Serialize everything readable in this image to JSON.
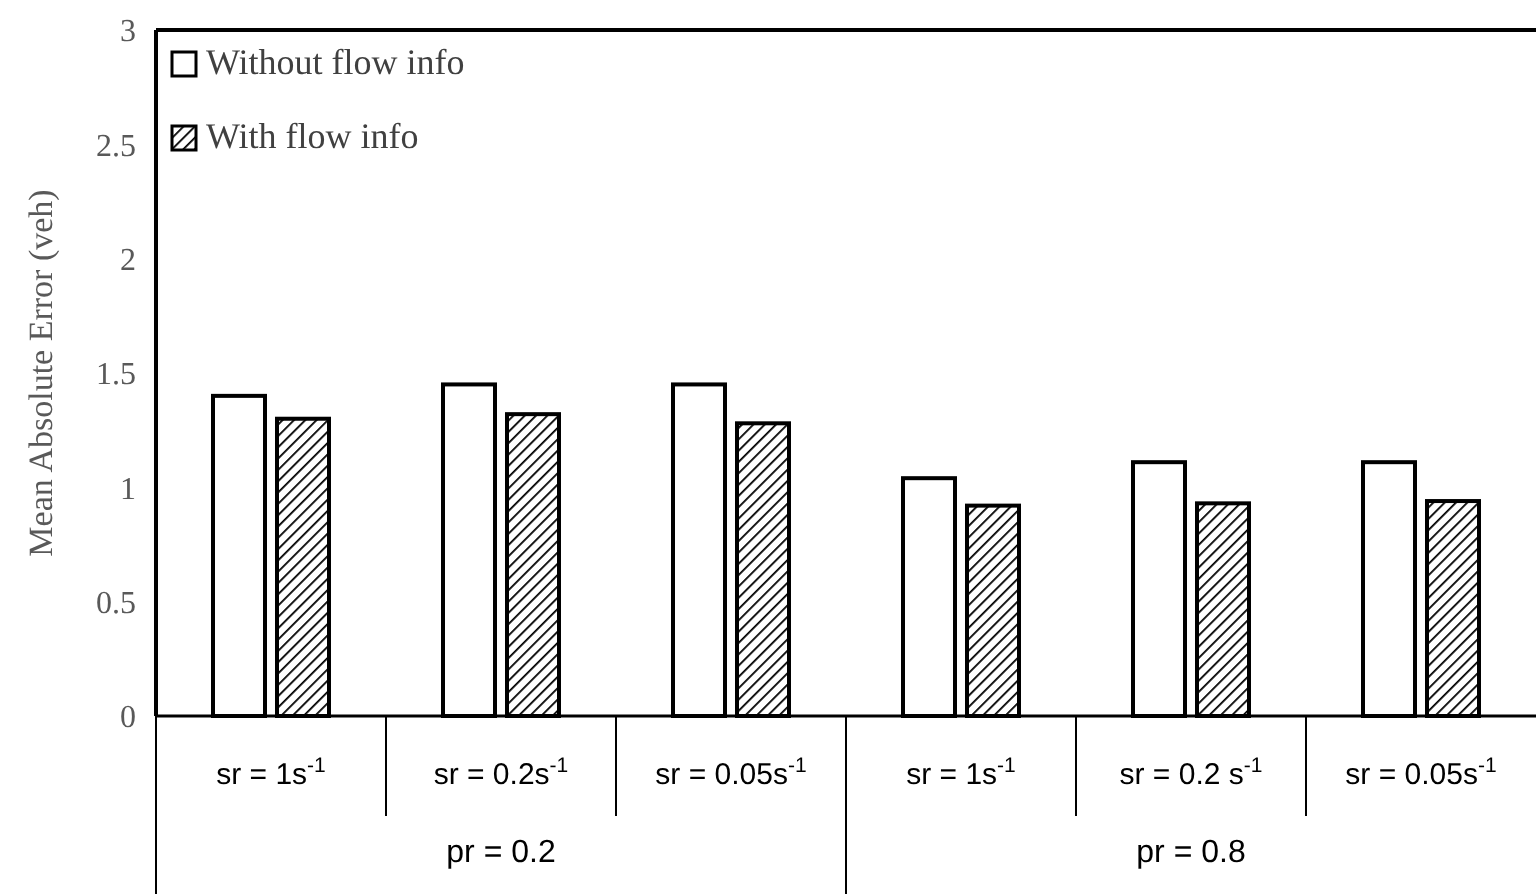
{
  "chart_data": {
    "type": "bar",
    "ylabel": "Mean Absolute Error (veh)",
    "categories": [
      "sr = 1s$^{-1}$",
      "sr = 0.2s$^{-1}$",
      "sr = 0.05s$^{-1}$",
      "sr = 1s$^{-1}$",
      "sr = 0.2 s$^{-1}$",
      "sr = 0.05s$^{-1}$"
    ],
    "series": [
      {
        "name": "Without flow info",
        "color": "#ffffff",
        "values": [
          1.4,
          1.45,
          1.45,
          1.04,
          1.11,
          1.11
        ]
      },
      {
        "name": "With flow info",
        "color": "#000000",
        "values": [
          1.3,
          1.32,
          1.28,
          0.92,
          0.93,
          0.94
        ]
      }
    ],
    "annotations": [
      "pr = 0.2",
      "pr = 0.8"
    ],
    "ylim": [
      0,
      3
    ],
    "yticks": [
      0,
      0.5,
      1,
      1.5,
      2,
      2.5,
      3
    ],
    "grid": false,
    "legend": "top left"
  }
}
